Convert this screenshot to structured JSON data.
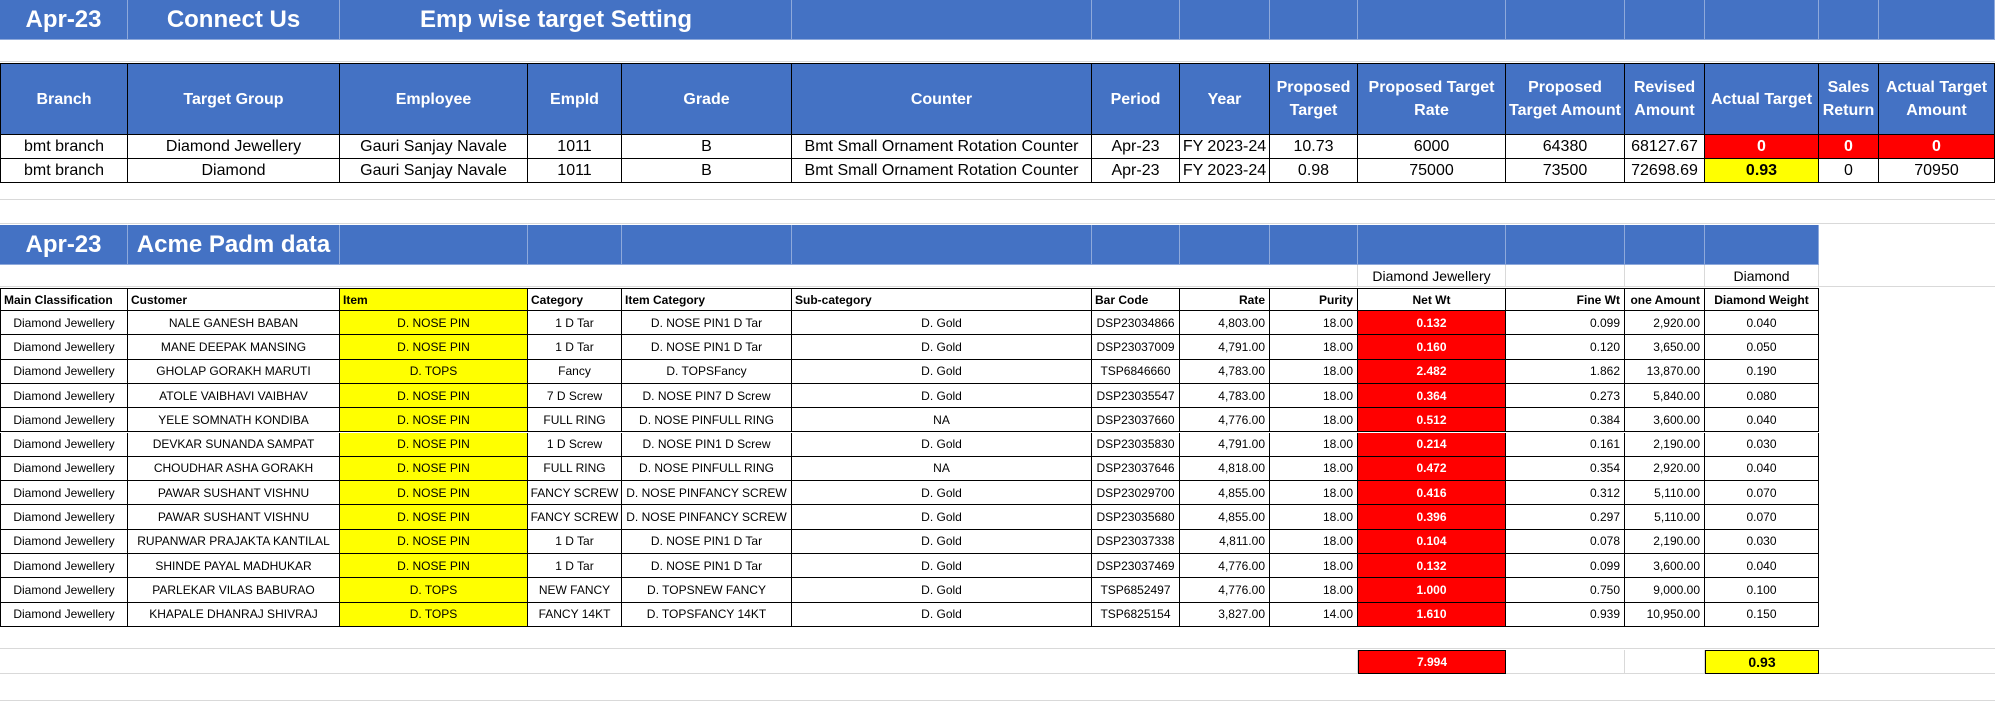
{
  "header": {
    "month": "Apr-23",
    "brand": "Connect Us",
    "title": "Emp wise target Setting"
  },
  "target_table": {
    "columns": [
      "Branch",
      "Target Group",
      "Employee",
      "EmpId",
      "Grade",
      "Counter",
      "Period",
      "Year",
      "Proposed Target",
      "Proposed Target Rate",
      "Proposed Target Amount",
      "Revised Amount",
      "Actual Target",
      "Sales Return",
      "Actual Target Amount"
    ],
    "rows": [
      [
        "bmt branch",
        "Diamond Jewellery",
        "Gauri Sanjay Navale",
        "1011",
        "B",
        "Bmt  Small Ornament Rotation Counter",
        "Apr-23",
        "FY 2023-24",
        "10.73",
        "6000",
        "64380",
        "68127.67",
        "0",
        "0",
        "0"
      ],
      [
        "bmt branch",
        "Diamond",
        "Gauri Sanjay Navale",
        "1011",
        "B",
        "Bmt  Small Ornament Rotation Counter",
        "Apr-23",
        "FY 2023-24",
        "0.98",
        "75000",
        "73500",
        "72698.69",
        "0.93",
        "0",
        "70950"
      ]
    ]
  },
  "section2": {
    "month": "Apr-23",
    "title": "Acme Padm data",
    "label_netwt": "Diamond Jewellery",
    "label_diamond": "Diamond"
  },
  "detail_table": {
    "columns": [
      "Main Classification",
      "Customer",
      "Item",
      "Category",
      "Item Category",
      "Sub-category",
      "Bar Code",
      "Rate",
      "Purity",
      "Net Wt",
      "Fine Wt",
      "one Amount",
      "Diamond Weight"
    ],
    "rows": [
      [
        "Diamond Jewellery",
        "NALE GANESH BABAN",
        "D. NOSE PIN",
        "1 D Tar",
        "D. NOSE PIN1 D Tar",
        "D. Gold",
        "DSP23034866",
        "4,803.00",
        "18.00",
        "0.132",
        "0.099",
        "2,920.00",
        "0.040"
      ],
      [
        "Diamond Jewellery",
        "MANE DEEPAK MANSING",
        "D. NOSE PIN",
        "1 D Tar",
        "D. NOSE PIN1 D Tar",
        "D. Gold",
        "DSP23037009",
        "4,791.00",
        "18.00",
        "0.160",
        "0.120",
        "3,650.00",
        "0.050"
      ],
      [
        "Diamond Jewellery",
        "GHOLAP GORAKH MARUTI",
        "D. TOPS",
        "Fancy",
        "D. TOPSFancy",
        "D. Gold",
        "TSP6846660",
        "4,783.00",
        "18.00",
        "2.482",
        "1.862",
        "13,870.00",
        "0.190"
      ],
      [
        "Diamond Jewellery",
        "ATOLE VAIBHAVI VAIBHAV",
        "D. NOSE PIN",
        "7 D Screw",
        "D. NOSE PIN7 D Screw",
        "D. Gold",
        "DSP23035547",
        "4,783.00",
        "18.00",
        "0.364",
        "0.273",
        "5,840.00",
        "0.080"
      ],
      [
        "Diamond Jewellery",
        "YELE SOMNATH KONDIBA",
        "D. NOSE PIN",
        "FULL RING",
        "D. NOSE PINFULL RING",
        "NA",
        "DSP23037660",
        "4,776.00",
        "18.00",
        "0.512",
        "0.384",
        "3,600.00",
        "0.040"
      ],
      [
        "Diamond Jewellery",
        "DEVKAR SUNANDA SAMPAT",
        "D. NOSE PIN",
        "1 D Screw",
        "D. NOSE PIN1 D Screw",
        "D. Gold",
        "DSP23035830",
        "4,791.00",
        "18.00",
        "0.214",
        "0.161",
        "2,190.00",
        "0.030"
      ],
      [
        "Diamond Jewellery",
        "CHOUDHAR ASHA GORAKH",
        "D. NOSE PIN",
        "FULL RING",
        "D. NOSE PINFULL RING",
        "NA",
        "DSP23037646",
        "4,818.00",
        "18.00",
        "0.472",
        "0.354",
        "2,920.00",
        "0.040"
      ],
      [
        "Diamond Jewellery",
        "PAWAR SUSHANT VISHNU",
        "D. NOSE PIN",
        "FANCY SCREW",
        "D. NOSE PINFANCY SCREW",
        "D. Gold",
        "DSP23029700",
        "4,855.00",
        "18.00",
        "0.416",
        "0.312",
        "5,110.00",
        "0.070"
      ],
      [
        "Diamond Jewellery",
        "PAWAR SUSHANT VISHNU",
        "D. NOSE PIN",
        "FANCY SCREW",
        "D. NOSE PINFANCY SCREW",
        "D. Gold",
        "DSP23035680",
        "4,855.00",
        "18.00",
        "0.396",
        "0.297",
        "5,110.00",
        "0.070"
      ],
      [
        "Diamond Jewellery",
        "RUPANWAR PRAJAKTA KANTILAL",
        "D. NOSE PIN",
        "1 D Tar",
        "D. NOSE PIN1 D Tar",
        "D. Gold",
        "DSP23037338",
        "4,811.00",
        "18.00",
        "0.104",
        "0.078",
        "2,190.00",
        "0.030"
      ],
      [
        "Diamond Jewellery",
        "SHINDE PAYAL MADHUKAR",
        "D. NOSE PIN",
        "1 D Tar",
        "D. NOSE PIN1 D Tar",
        "D. Gold",
        "DSP23037469",
        "4,776.00",
        "18.00",
        "0.132",
        "0.099",
        "3,600.00",
        "0.040"
      ],
      [
        "Diamond Jewellery",
        "PARLEKAR VILAS BABURAO",
        "D. TOPS",
        "NEW FANCY",
        "D. TOPSNEW FANCY",
        "D. Gold",
        "TSP6852497",
        "4,776.00",
        "18.00",
        "1.000",
        "0.750",
        "9,000.00",
        "0.100"
      ],
      [
        "Diamond Jewellery",
        "KHAPALE DHANRAJ SHIVRAJ",
        "D. TOPS",
        "FANCY 14KT",
        "D. TOPSFANCY 14KT",
        "D. Gold",
        "TSP6825154",
        "3,827.00",
        "14.00",
        "1.610",
        "0.939",
        "10,950.00",
        "0.150"
      ]
    ]
  },
  "totals": {
    "net_wt": "7.994",
    "diamond_weight": "0.93"
  },
  "colors": {
    "header_blue": "#4472c4",
    "highlight_red": "#ff0000",
    "highlight_yellow": "#ffff00"
  }
}
